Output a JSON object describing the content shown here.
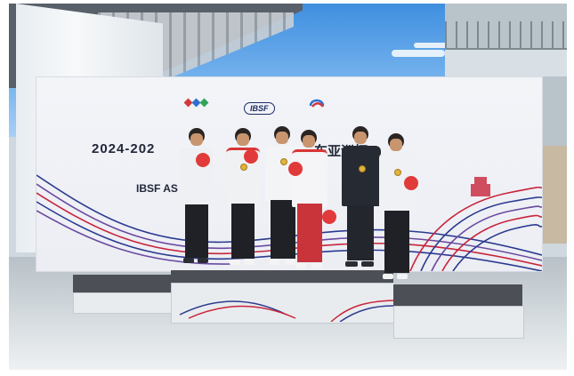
{
  "banner": {
    "title_en": "2024-202",
    "title_cn": "车亚洲杯",
    "subtitle": "IBSF AS",
    "logo_ibsf": "IBSF",
    "colors": {
      "wave_blue": "#2b3a8f",
      "wave_red": "#c8243a",
      "wave_purple": "#6a4aa0"
    }
  },
  "scene": {
    "athletes_count": 6,
    "podium_steps": 3,
    "sky_color": "#5fa2e8"
  }
}
